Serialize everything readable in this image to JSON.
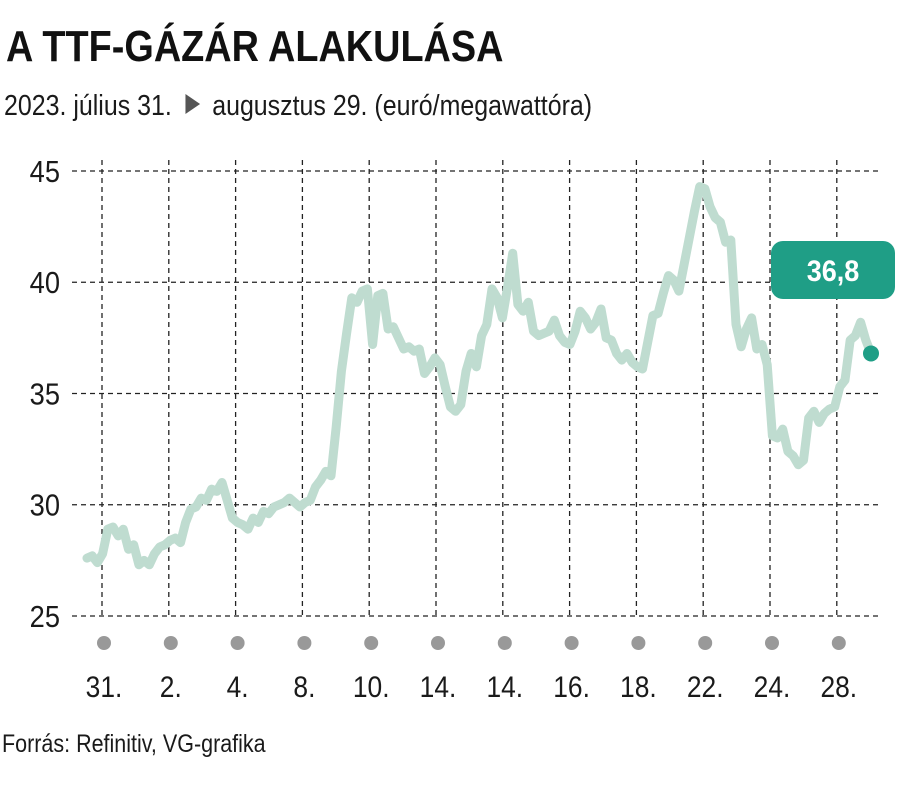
{
  "title": "A TTF-GÁZÁR ALAKULÁSA",
  "subtitle": {
    "start": "2023. július 31.",
    "end": "augusztus 29. (euró/megawattóra)"
  },
  "source": "Forrás: Refinitiv, VG-grafika",
  "colors": {
    "line": "#bfdcd0",
    "accent": "#1f9e86",
    "grid": "#222222",
    "marker": "#999999"
  },
  "chart_data": {
    "type": "line",
    "title": "A TTF-GÁZÁR ALAKULÁSA",
    "ylim": [
      25,
      45
    ],
    "y_ticks": [
      25,
      30,
      35,
      40,
      45
    ],
    "x_ticks": [
      "31.",
      "2.",
      "4.",
      "8.",
      "10.",
      "14.",
      "14.",
      "16.",
      "18.",
      "22.",
      "24.",
      "28."
    ],
    "grid": true,
    "last_value_label": "36,8",
    "last_value": 36.8,
    "series": [
      {
        "values": [
          27.6,
          27.7,
          27.4,
          27.8,
          28.9,
          29.0,
          28.6,
          28.9,
          28.0,
          28.2,
          27.3,
          27.5,
          27.3,
          27.8,
          28.1,
          28.2,
          28.4,
          28.5,
          28.3,
          29.2,
          29.8,
          29.9,
          30.3,
          30.2,
          30.7,
          30.6,
          31.0,
          30.2,
          29.4,
          29.2,
          29.1,
          28.9,
          29.4,
          29.2,
          29.7,
          29.6,
          29.9,
          30.0,
          30.1,
          30.3,
          30.1,
          29.9,
          30.1,
          30.2,
          30.8,
          31.1,
          31.5,
          31.3,
          33.5,
          36.0,
          37.7,
          39.3,
          39.1,
          39.6,
          39.7,
          37.2,
          39.4,
          39.5,
          37.9,
          38.0,
          37.5,
          37.0,
          37.1,
          36.9,
          37.0,
          35.9,
          36.2,
          36.6,
          36.3,
          35.3,
          34.4,
          34.2,
          34.5,
          36.0,
          36.8,
          36.2,
          37.6,
          38.1,
          39.7,
          39.3,
          38.4,
          39.8,
          41.3,
          39.0,
          38.7,
          39.1,
          37.8,
          37.6,
          37.7,
          37.8,
          38.3,
          37.6,
          37.3,
          37.2,
          37.8,
          38.7,
          38.4,
          37.9,
          38.2,
          38.8,
          37.5,
          37.4,
          36.8,
          36.5,
          36.8,
          36.4,
          36.2,
          36.1,
          37.3,
          38.5,
          38.6,
          39.5,
          40.3,
          40.1,
          39.6,
          40.8,
          42.0,
          43.2,
          44.3,
          44.2,
          43.4,
          42.9,
          42.7,
          41.8,
          41.9,
          38.1,
          37.1,
          37.9,
          38.4,
          37.0,
          37.2,
          36.3,
          33.1,
          33.0,
          33.4,
          32.4,
          32.2,
          31.8,
          32.0,
          33.9,
          34.2,
          33.7,
          34.1,
          34.3,
          34.4,
          35.3,
          35.6,
          37.4,
          37.6,
          38.2,
          37.4,
          36.8
        ]
      }
    ]
  }
}
